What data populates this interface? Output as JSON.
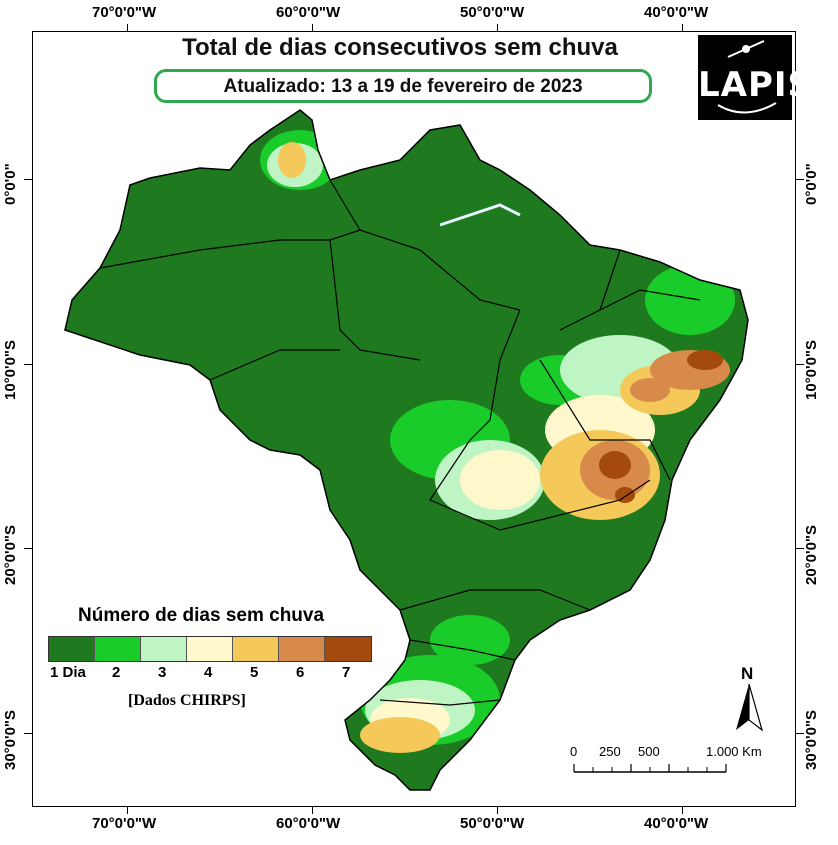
{
  "map": {
    "title": "Total de dias consecutivos sem chuva",
    "subtitle": "Atualizado: 13 a 19 de fevereiro de 2023",
    "logo_text": "LAPIS",
    "longitude_labels": [
      "70°0'0\"W",
      "60°0'0\"W",
      "50°0'0\"W",
      "40°0'0\"W"
    ],
    "latitude_labels": [
      "0°0'0\"",
      "10°0'0\"S",
      "20°0'0\"S",
      "30°0'0\"S"
    ],
    "north_arrow_label": "N",
    "scale_bar": {
      "labels": [
        "0",
        "250",
        "500",
        "1.000 Km"
      ]
    }
  },
  "legend": {
    "title": "Número de dias sem chuva",
    "source": "[Dados CHIRPS]",
    "classes": [
      {
        "label": "1 Dia",
        "color": "#1f7a1f"
      },
      {
        "label": "2",
        "color": "#19cc2a"
      },
      {
        "label": "3",
        "color": "#bff5c4"
      },
      {
        "label": "4",
        "color": "#fff8cc"
      },
      {
        "label": "5",
        "color": "#f5c85a"
      },
      {
        "label": "6",
        "color": "#d88a4a"
      },
      {
        "label": "7",
        "color": "#a34a0c"
      }
    ]
  }
}
